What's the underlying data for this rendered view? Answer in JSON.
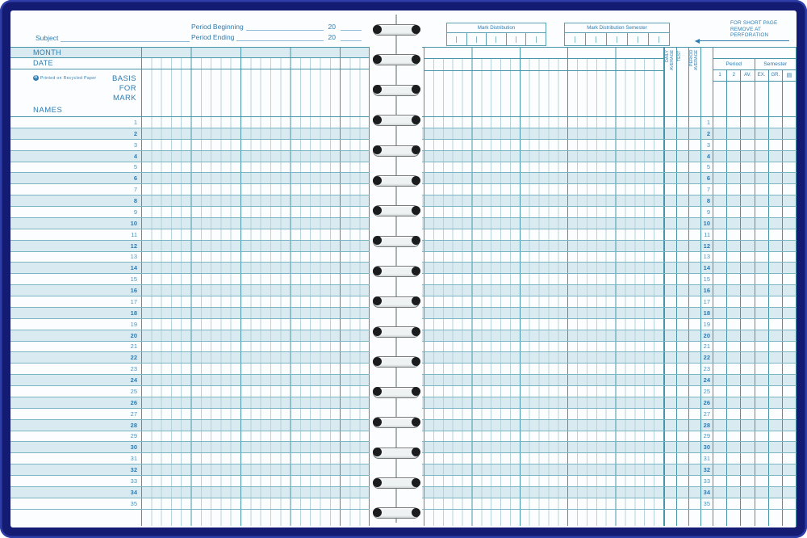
{
  "colors": {
    "cover_navy": "#141b72",
    "cover_edge_blue": "#2e3ea8",
    "paper": "#fcfdfe",
    "row_tint": "#d9eaf1",
    "grid_heavy": "#4795a8",
    "grid_thin": "#b7d3db",
    "text_blue": "#2e7cb0"
  },
  "left_page": {
    "subject_label": "Subject",
    "period_beginning_label": "Period Beginning",
    "period_ending_label": "Period Ending",
    "year_beginning": "20",
    "year_ending": "20",
    "month_label": "MONTH",
    "date_label": "DATE",
    "recycle_symbol": "♻",
    "recycled_note": "Printed on Recycled Paper",
    "basis_for_mark_label": "BASIS\nFOR\nMARK",
    "names_label": "NAMES"
  },
  "right_page": {
    "mark_distribution_title": "Mark Distribution",
    "mark_distribution_semester_title": "Mark Distribution Semester",
    "short_page_note": "FOR SHORT PAGE\nREMOVE AT\nPERFORATION",
    "daily_average_label": "DAILY\nAVERAGE",
    "test_label": "TEST",
    "period_average_label": "PERIOD\nAVERAGE",
    "period_header": "Period",
    "semester_header": "Semester",
    "grade_cols": [
      "1",
      "2",
      "AV.",
      "EX.",
      "GR."
    ],
    "book_icon": "▤"
  },
  "rows": {
    "numbers": [
      1,
      2,
      3,
      4,
      5,
      6,
      7,
      8,
      9,
      10,
      11,
      12,
      13,
      14,
      15,
      16,
      17,
      18,
      19,
      20,
      21,
      22,
      23,
      24,
      25,
      26,
      27,
      28,
      29,
      30,
      31,
      32,
      33,
      34,
      35
    ]
  }
}
